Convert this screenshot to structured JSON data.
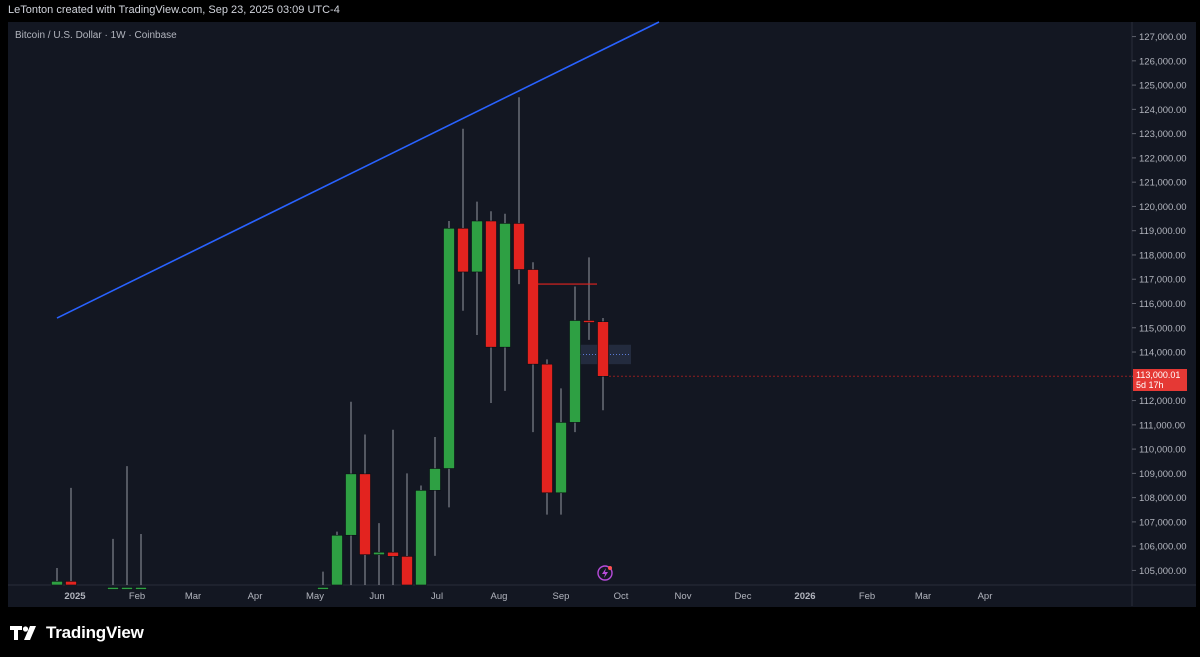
{
  "header": {
    "attribution": "LeTonton created with TradingView.com, Sep 23, 2025 03:09 UTC-4"
  },
  "symbol": {
    "title": "Bitcoin / U.S. Dollar · 1W · Coinbase"
  },
  "price_tag": {
    "price": "113,000.01",
    "countdown": "5d 17h"
  },
  "footer": {
    "logo_text": "TradingView"
  },
  "colors": {
    "up": "#2ea043",
    "down": "#e3231f",
    "trendline": "#2962ff",
    "background": "#131722"
  },
  "chart_data": {
    "type": "candlestick",
    "timeframe": "1W",
    "ylim": [
      104400,
      127600
    ],
    "yticks": [
      "105,000.00",
      "106,000.00",
      "107,000.00",
      "108,000.00",
      "109,000.00",
      "110,000.00",
      "111,000.00",
      "112,000.00",
      "113,000.00",
      "114,000.00",
      "115,000.00",
      "116,000.00",
      "117,000.00",
      "118,000.00",
      "119,000.00",
      "120,000.00",
      "121,000.00",
      "122,000.00",
      "123,000.00",
      "124,000.00",
      "125,000.00",
      "126,000.00",
      "127,000.00"
    ],
    "xticks": [
      "2025",
      "Feb",
      "Mar",
      "Apr",
      "May",
      "Jun",
      "Jul",
      "Aug",
      "Sep",
      "Oct",
      "Nov",
      "Dec",
      "2026",
      "Feb",
      "Mar",
      "Apr"
    ],
    "candles": [
      {
        "date": "2024-12-23",
        "open": 104300,
        "high": 105100,
        "low": 104300,
        "close": 104550
      },
      {
        "date": "2024-12-30",
        "open": 104550,
        "high": 108400,
        "low": 104300,
        "close": 104400
      },
      {
        "date": "2025-01-20",
        "open": 104300,
        "high": 106300,
        "low": 104300,
        "close": 104300
      },
      {
        "date": "2025-01-27",
        "open": 104300,
        "high": 109300,
        "low": 104300,
        "close": 104300
      },
      {
        "date": "2025-02-03",
        "open": 104300,
        "high": 106500,
        "low": 104300,
        "close": 104300
      },
      {
        "date": "2025-05-05",
        "open": 104300,
        "high": 104950,
        "low": 104300,
        "close": 104300
      },
      {
        "date": "2025-05-12",
        "open": 104300,
        "high": 106600,
        "low": 104300,
        "close": 106450
      },
      {
        "date": "2025-05-19",
        "open": 106450,
        "high": 111950,
        "low": 104300,
        "close": 108980
      },
      {
        "date": "2025-05-26",
        "open": 108980,
        "high": 110600,
        "low": 104300,
        "close": 105650
      },
      {
        "date": "2025-06-02",
        "open": 105650,
        "high": 106950,
        "low": 104300,
        "close": 105750
      },
      {
        "date": "2025-06-09",
        "open": 105750,
        "high": 110800,
        "low": 104400,
        "close": 105580
      },
      {
        "date": "2025-06-16",
        "open": 105580,
        "high": 109000,
        "low": 104400,
        "close": 104300
      },
      {
        "date": "2025-06-23",
        "open": 104300,
        "high": 108500,
        "low": 104300,
        "close": 108300
      },
      {
        "date": "2025-06-30",
        "open": 108300,
        "high": 110500,
        "low": 105600,
        "close": 109200
      },
      {
        "date": "2025-07-07",
        "open": 109200,
        "high": 119400,
        "low": 107600,
        "close": 119100
      },
      {
        "date": "2025-07-14",
        "open": 119100,
        "high": 123200,
        "low": 115700,
        "close": 117300
      },
      {
        "date": "2025-07-21",
        "open": 117300,
        "high": 120200,
        "low": 114700,
        "close": 119400
      },
      {
        "date": "2025-07-28",
        "open": 119400,
        "high": 119800,
        "low": 111900,
        "close": 114200
      },
      {
        "date": "2025-08-04",
        "open": 114200,
        "high": 119700,
        "low": 112400,
        "close": 119300
      },
      {
        "date": "2025-08-11",
        "open": 119300,
        "high": 124500,
        "low": 116800,
        "close": 117400
      },
      {
        "date": "2025-08-18",
        "open": 117400,
        "high": 117700,
        "low": 110700,
        "close": 113500
      },
      {
        "date": "2025-08-25",
        "open": 113500,
        "high": 113700,
        "low": 107300,
        "close": 108200
      },
      {
        "date": "2025-09-01",
        "open": 108200,
        "high": 112500,
        "low": 107300,
        "close": 111100
      },
      {
        "date": "2025-09-08",
        "open": 111100,
        "high": 116700,
        "low": 110700,
        "close": 115300
      },
      {
        "date": "2025-09-15",
        "open": 115300,
        "high": 117900,
        "low": 114500,
        "close": 115250
      },
      {
        "date": "2025-09-22",
        "open": 115250,
        "high": 115400,
        "low": 111600,
        "close": 113000.01
      }
    ],
    "trendline": {
      "from": {
        "date": "2024-12-23",
        "price": 115400
      },
      "to": {
        "date": "2025-10-20",
        "price": 127600
      }
    },
    "horizontal_line": {
      "from": "2025-08-18",
      "to": "2025-09-15",
      "price": 116800
    },
    "zone": {
      "from": "2025-09-08",
      "to": "2025-10-06",
      "low": 113500,
      "high": 114300
    },
    "last_price": 113000.01
  }
}
